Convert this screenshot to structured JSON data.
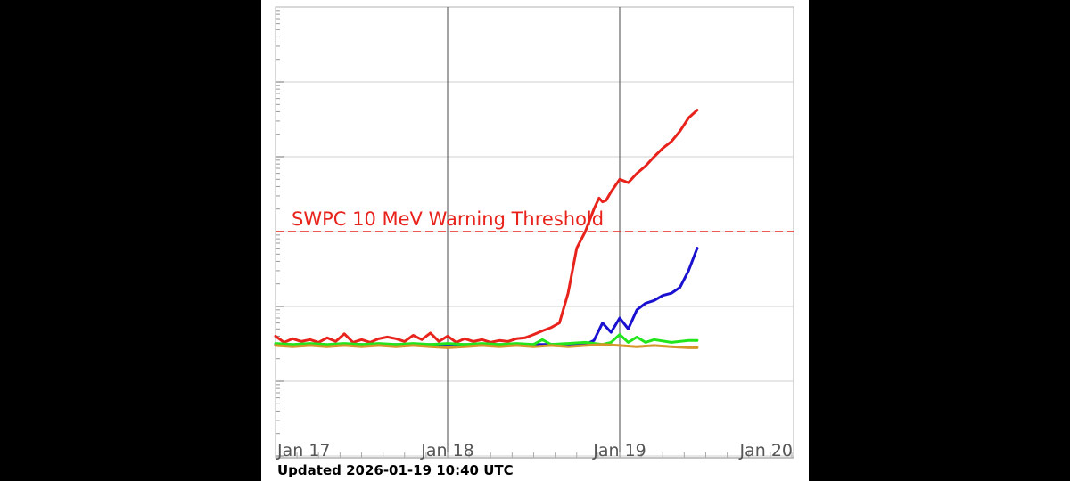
{
  "footer": {
    "updated": "Updated 2026-01-19 10:40 UTC"
  },
  "chart_data": {
    "type": "line",
    "yscale": "log",
    "grid": true,
    "xlabel": "",
    "ylabel": "",
    "x_ticks": [
      "Jan 17",
      "Jan 18",
      "Jan 19",
      "Jan 20"
    ],
    "threshold": {
      "label": "SWPC 10 MeV Warning Threshold",
      "value": 10,
      "color": "#e8231c",
      "style": "dashed"
    },
    "series": [
      {
        "color": "#e8231c",
        "x": [
          0.0,
          0.05,
          0.1,
          0.15,
          0.2,
          0.25,
          0.3,
          0.35,
          0.4,
          0.45,
          0.5,
          0.55,
          0.6,
          0.65,
          0.7,
          0.75,
          0.8,
          0.85,
          0.9,
          0.95,
          1.0,
          1.05,
          1.1,
          1.15,
          1.2,
          1.25,
          1.3,
          1.35,
          1.4,
          1.45,
          1.5,
          1.55,
          1.6,
          1.65,
          1.7,
          1.75,
          1.8,
          1.85,
          1.88,
          1.9,
          1.92,
          1.95,
          2.0,
          2.05,
          2.1,
          2.15,
          2.2,
          2.25,
          2.3,
          2.35,
          2.4,
          2.45
        ],
        "y": [
          0.4,
          0.33,
          0.37,
          0.34,
          0.36,
          0.33,
          0.38,
          0.34,
          0.43,
          0.33,
          0.36,
          0.33,
          0.37,
          0.39,
          0.37,
          0.34,
          0.41,
          0.36,
          0.44,
          0.34,
          0.4,
          0.33,
          0.37,
          0.34,
          0.36,
          0.33,
          0.35,
          0.34,
          0.37,
          0.38,
          0.42,
          0.47,
          0.52,
          0.6,
          1.5,
          6,
          10,
          20,
          28,
          25,
          26,
          34,
          50,
          45,
          60,
          75,
          100,
          130,
          160,
          220,
          330,
          420
        ]
      },
      {
        "color": "#1a10d0",
        "x": [
          0.0,
          0.1,
          0.2,
          0.3,
          0.4,
          0.5,
          0.6,
          0.7,
          0.8,
          0.9,
          1.0,
          1.1,
          1.2,
          1.3,
          1.4,
          1.5,
          1.6,
          1.7,
          1.8,
          1.85,
          1.9,
          1.95,
          2.0,
          2.05,
          2.1,
          2.15,
          2.2,
          2.25,
          2.3,
          2.35,
          2.4,
          2.45
        ],
        "y": [
          0.31,
          0.3,
          0.31,
          0.3,
          0.31,
          0.31,
          0.3,
          0.31,
          0.3,
          0.31,
          0.3,
          0.31,
          0.3,
          0.31,
          0.3,
          0.31,
          0.31,
          0.31,
          0.31,
          0.35,
          0.6,
          0.45,
          0.7,
          0.5,
          0.9,
          1.1,
          1.2,
          1.4,
          1.5,
          1.8,
          3,
          6
        ]
      },
      {
        "color": "#22e61c",
        "x": [
          0.0,
          0.1,
          0.2,
          0.3,
          0.4,
          0.5,
          0.6,
          0.7,
          0.8,
          0.9,
          1.0,
          1.1,
          1.2,
          1.3,
          1.4,
          1.5,
          1.55,
          1.6,
          1.7,
          1.8,
          1.9,
          1.95,
          2.0,
          2.05,
          2.1,
          2.15,
          2.2,
          2.3,
          2.4,
          2.45
        ],
        "y": [
          0.32,
          0.31,
          0.32,
          0.31,
          0.32,
          0.31,
          0.32,
          0.31,
          0.32,
          0.31,
          0.32,
          0.31,
          0.32,
          0.31,
          0.32,
          0.31,
          0.36,
          0.31,
          0.32,
          0.33,
          0.31,
          0.33,
          0.42,
          0.33,
          0.39,
          0.33,
          0.36,
          0.33,
          0.35,
          0.35
        ]
      },
      {
        "color": "#d6972a",
        "x": [
          0.0,
          0.1,
          0.2,
          0.3,
          0.4,
          0.5,
          0.6,
          0.7,
          0.8,
          0.9,
          1.0,
          1.1,
          1.2,
          1.3,
          1.4,
          1.5,
          1.6,
          1.7,
          1.8,
          1.9,
          2.0,
          2.1,
          2.2,
          2.3,
          2.4,
          2.45
        ],
        "y": [
          0.3,
          0.29,
          0.3,
          0.29,
          0.3,
          0.29,
          0.3,
          0.29,
          0.3,
          0.29,
          0.28,
          0.29,
          0.3,
          0.29,
          0.3,
          0.29,
          0.3,
          0.29,
          0.3,
          0.31,
          0.3,
          0.29,
          0.3,
          0.29,
          0.28,
          0.28
        ]
      }
    ]
  }
}
